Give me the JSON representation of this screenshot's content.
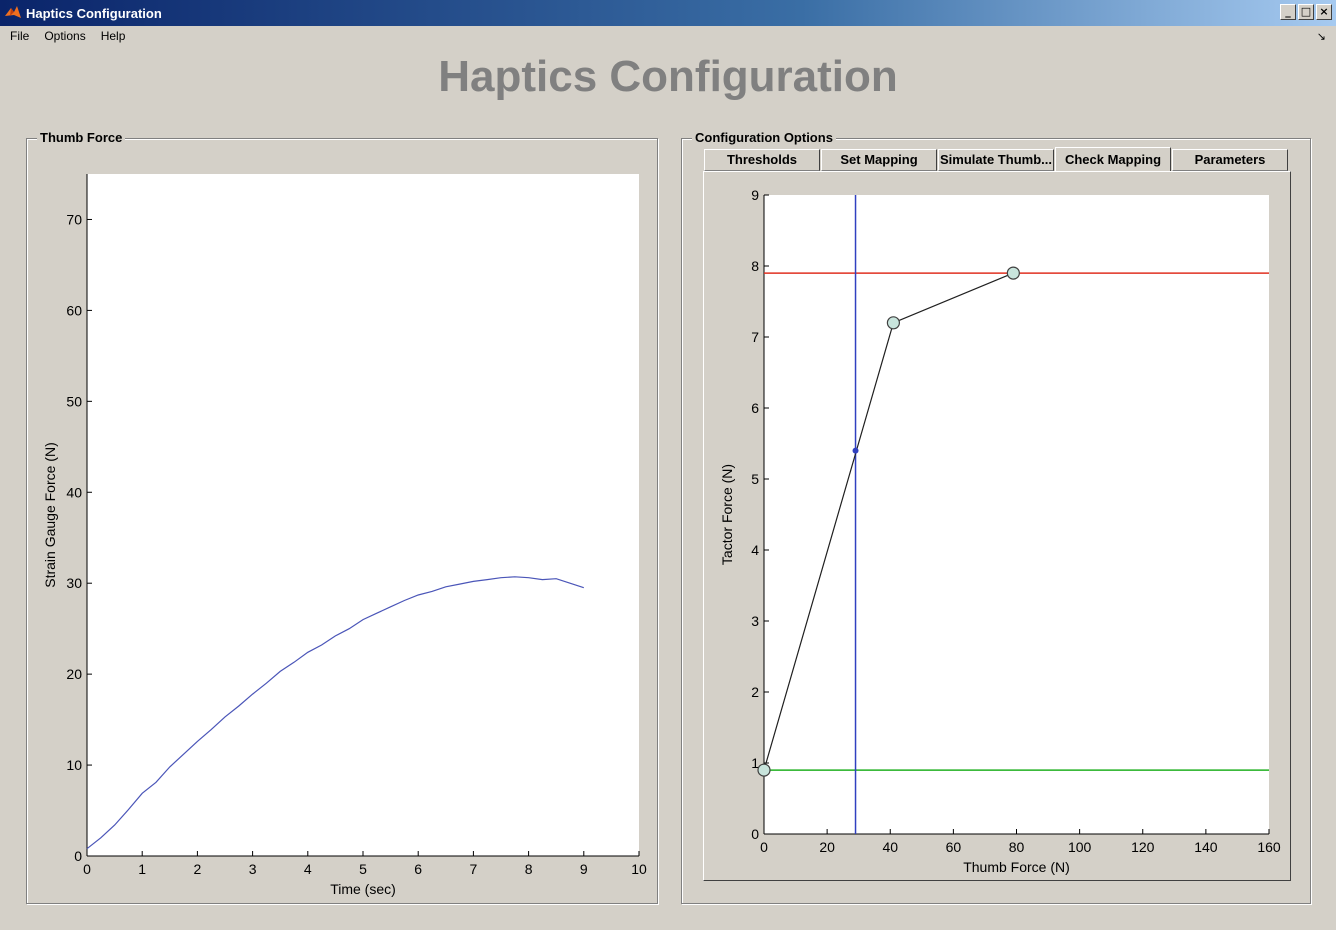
{
  "window": {
    "title": "Haptics Configuration",
    "controls": [
      "_",
      "□",
      "×"
    ]
  },
  "menu": [
    "File",
    "Options",
    "Help"
  ],
  "main_title": "Haptics Configuration",
  "left_panel": {
    "title": "Thumb Force"
  },
  "right_panel": {
    "title": "Configuration Options",
    "tabs": [
      "Thresholds",
      "Set Mapping",
      "Simulate Thumb...",
      "Check Mapping",
      "Parameters"
    ],
    "active_tab": "Check Mapping"
  },
  "chart_data": [
    {
      "type": "line",
      "xlabel": "Time (sec)",
      "ylabel": "Strain Gauge Force (N)",
      "xlim": [
        0,
        10
      ],
      "ylim": [
        0,
        75
      ],
      "xticks": [
        0,
        1,
        2,
        3,
        4,
        5,
        6,
        7,
        8,
        9,
        10
      ],
      "yticks": [
        0,
        10,
        20,
        30,
        40,
        50,
        60,
        70
      ],
      "series": [
        {
          "color": "#4a55b8",
          "x": [
            0,
            0.25,
            0.5,
            0.75,
            1,
            1.25,
            1.5,
            1.75,
            2,
            2.25,
            2.5,
            2.75,
            3,
            3.25,
            3.5,
            3.75,
            4,
            4.25,
            4.5,
            4.75,
            5,
            5.25,
            5.5,
            5.75,
            6,
            6.25,
            6.5,
            6.75,
            7,
            7.25,
            7.5,
            7.75,
            8,
            8.25,
            8.5,
            8.75,
            9
          ],
          "values": [
            0.8,
            2.0,
            3.4,
            5.1,
            6.9,
            8.1,
            9.8,
            11.2,
            12.6,
            13.9,
            15.3,
            16.5,
            17.8,
            19.0,
            20.3,
            21.3,
            22.4,
            23.2,
            24.2,
            25.0,
            26.0,
            26.7,
            27.4,
            28.1,
            28.7,
            29.1,
            29.6,
            29.9,
            30.2,
            30.4,
            30.6,
            30.7,
            30.6,
            30.4,
            30.5,
            30.0,
            29.5
          ]
        }
      ]
    },
    {
      "type": "line",
      "xlabel": "Thumb Force (N)",
      "ylabel": "Tactor Force (N)",
      "xlim": [
        0,
        160
      ],
      "ylim": [
        0,
        9
      ],
      "xticks": [
        0,
        20,
        40,
        60,
        80,
        100,
        120,
        140,
        160
      ],
      "yticks": [
        0,
        1,
        2,
        3,
        4,
        5,
        6,
        7,
        8,
        9
      ],
      "mapping_points": {
        "x": [
          0,
          41,
          79
        ],
        "y": [
          0.9,
          7.2,
          7.9
        ]
      },
      "current_point": {
        "x": 29,
        "y": 5.4
      },
      "upper_threshold": {
        "y": 7.9,
        "color": "#e03020"
      },
      "lower_threshold": {
        "y": 0.9,
        "color": "#20b020"
      },
      "cursor_line": {
        "x": 29,
        "color": "#3040c0"
      }
    }
  ]
}
